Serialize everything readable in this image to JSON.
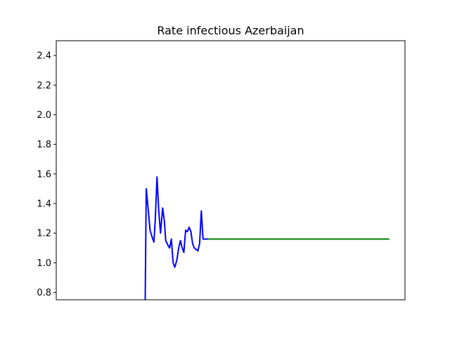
{
  "chart_data": {
    "type": "line",
    "title": "Rate infectious Azerbaijan",
    "xlabel": "",
    "ylabel": "",
    "ylim": [
      0.75,
      2.5
    ],
    "xlim": [
      0,
      100
    ],
    "yticks": [
      0.8,
      1.0,
      1.2,
      1.4,
      1.6,
      1.8,
      2.0,
      2.2,
      2.4
    ],
    "ytick_labels": [
      "0.8",
      "1.0",
      "1.2",
      "1.4",
      "1.6",
      "1.8",
      "2.0",
      "2.2",
      "2.4"
    ],
    "xticks_visible": false,
    "grid": false,
    "series": [
      {
        "color": "#0000ff",
        "x": [
          25.5,
          25.8,
          26.3,
          26.9,
          27.4,
          28.0,
          28.4,
          28.9,
          29.4,
          29.9,
          30.5,
          31.0,
          31.4,
          32.0,
          32.5,
          33.0,
          33.5,
          34.0,
          34.6,
          35.1,
          35.6,
          36.1,
          36.6,
          37.1,
          37.6,
          38.1,
          38.6,
          39.1,
          39.6,
          40.1,
          40.6,
          41.1,
          41.6,
          42.1,
          42.6,
          43.1,
          43.6
        ],
        "y": [
          0.75,
          1.5,
          1.38,
          1.22,
          1.18,
          1.14,
          1.3,
          1.58,
          1.35,
          1.2,
          1.37,
          1.28,
          1.15,
          1.12,
          1.1,
          1.16,
          1.0,
          0.97,
          1.02,
          1.1,
          1.15,
          1.1,
          1.07,
          1.22,
          1.21,
          1.24,
          1.21,
          1.13,
          1.1,
          1.09,
          1.08,
          1.13,
          1.35,
          1.16,
          1.16,
          1.16,
          1.16
        ]
      },
      {
        "color": "#008000",
        "x": [
          43.5,
          95.5
        ],
        "y": [
          1.16,
          1.16
        ]
      }
    ]
  }
}
